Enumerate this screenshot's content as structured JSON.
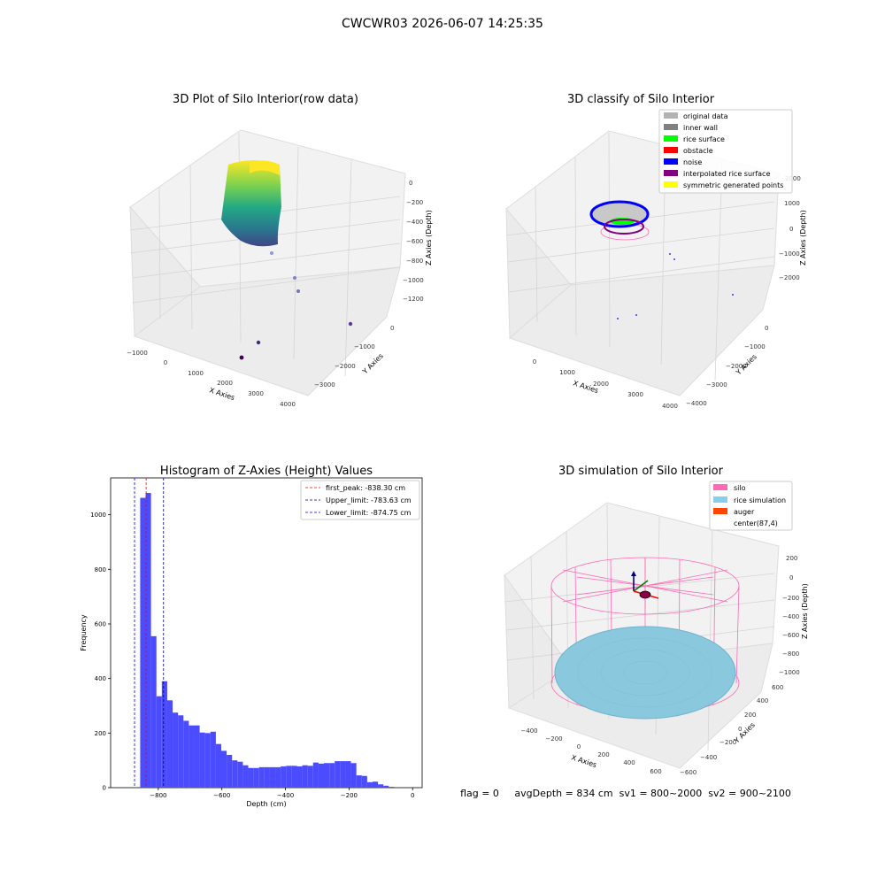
{
  "suptitle": "CWCWR03 2026-06-07 14:25:35",
  "status_line": "flag = 0     avgDepth = 834 cm  sv1 = 800~2000  sv2 = 900~2100",
  "panels": {
    "raw": {
      "title": "3D Plot of Silo Interior(row data)",
      "xlabel": "X Axies",
      "ylabel": "Y Axies",
      "zlabel": "Z Axies (Depth)",
      "xticks": [
        "−1000",
        "0",
        "1000",
        "2000",
        "3000",
        "4000"
      ],
      "yticks": [
        "−3000",
        "−2000",
        "−1000",
        "0"
      ],
      "zticks": [
        "0",
        "−200",
        "−400",
        "−600",
        "−800",
        "−1000",
        "−1200"
      ]
    },
    "classify": {
      "title": "3D classify of Silo Interior",
      "xlabel": "X Axies",
      "ylabel": "Y Axies",
      "zlabel": "Z Axies (Depth)",
      "xticks": [
        "0",
        "1000",
        "2000",
        "3000",
        "4000"
      ],
      "yticks": [
        "−4000",
        "−3000",
        "−2000",
        "−1000",
        "0"
      ],
      "zticks": [
        "2000",
        "1000",
        "0",
        "−1000",
        "−2000"
      ],
      "legend": [
        {
          "label": "original data",
          "color": "#b3b3b3"
        },
        {
          "label": "inner wall",
          "color": "#808080"
        },
        {
          "label": "rice surface",
          "color": "#00ff00"
        },
        {
          "label": "obstacle",
          "color": "#ff0000"
        },
        {
          "label": "noise",
          "color": "#0000ff"
        },
        {
          "label": "interpolated rice surface",
          "color": "#800080"
        },
        {
          "label": "symmetric generated points",
          "color": "#ffff00"
        }
      ]
    },
    "simulation": {
      "title": "3D simulation of Silo Interior",
      "xlabel": "X Axies",
      "ylabel": "Y Axies",
      "zlabel": "Z Axies (Depth)",
      "xticks": [
        "−400",
        "−200",
        "0",
        "200",
        "400",
        "600"
      ],
      "yticks": [
        "−600",
        "−400",
        "−200",
        "0",
        "200",
        "400",
        "600"
      ],
      "zticks": [
        "200",
        "0",
        "−200",
        "−400",
        "−600",
        "−800",
        "−1000"
      ],
      "legend": [
        {
          "label": "silo",
          "color": "#ff69b4"
        },
        {
          "label": "rice simulation",
          "color": "#87ceeb"
        },
        {
          "label": "auger",
          "color": "#ff4500"
        },
        {
          "label": "center(87,4)",
          "color": "none"
        }
      ]
    }
  },
  "chart_data": [
    {
      "type": "histogram",
      "title": "Histogram of Z-Axies (Height) Values",
      "xlabel": "Depth (cm)",
      "ylabel": "Frequency",
      "xlim": [
        -950,
        30
      ],
      "ylim": [
        0,
        1135
      ],
      "xticks": [
        -800,
        -600,
        -400,
        -200,
        0
      ],
      "yticks": [
        0,
        200,
        400,
        600,
        800,
        1000
      ],
      "bar_color": "#4b4bff",
      "bin_start": -857,
      "bin_width": 17,
      "counts": [
        1062,
        1080,
        555,
        335,
        390,
        320,
        275,
        265,
        245,
        228,
        228,
        202,
        200,
        205,
        160,
        135,
        120,
        100,
        95,
        82,
        72,
        72,
        75,
        75,
        75,
        75,
        78,
        80,
        80,
        78,
        82,
        80,
        92,
        88,
        90,
        90,
        97,
        97,
        97,
        90,
        45,
        43,
        20,
        22,
        12,
        7,
        3
      ],
      "vlines": [
        {
          "label": "first_peak: -838.30 cm",
          "x": -838.3,
          "color": "#ff0000"
        },
        {
          "label": "Upper_limit: -783.63 cm",
          "x": -783.63,
          "color": "#00008b"
        },
        {
          "label": "Lower_limit: -874.75 cm",
          "x": -874.75,
          "color": "#0000ff"
        }
      ],
      "legend_position": "top-right"
    }
  ]
}
